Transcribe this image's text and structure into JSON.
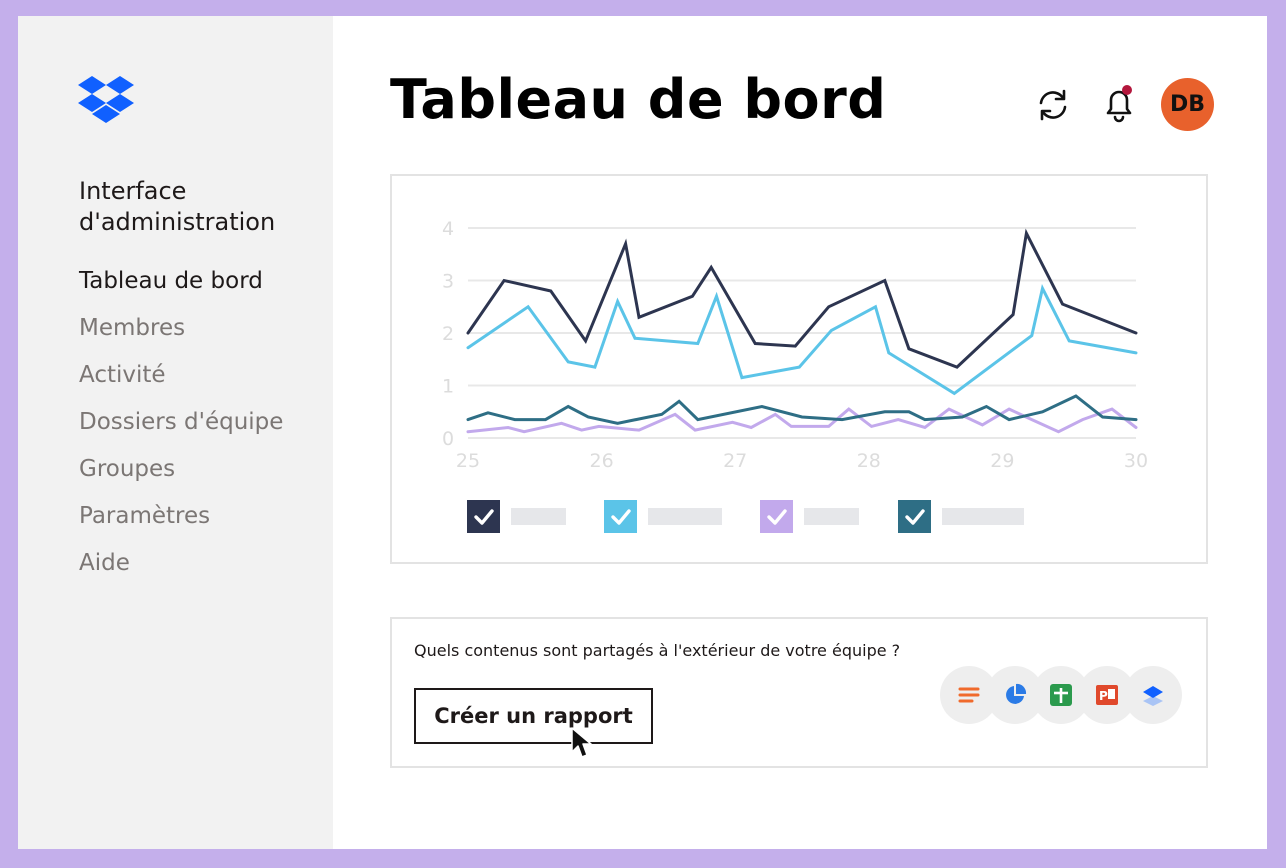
{
  "app": {
    "admin_title": "Interface d'administration",
    "page_title": "Tableau de bord",
    "avatar_initials": "DB",
    "avatar_color": "#e8612c",
    "notification_dot_color": "#b3163c",
    "logo": "dropbox-logo",
    "header_icons": [
      "sync-icon",
      "bell-icon"
    ]
  },
  "sidebar": {
    "items": [
      {
        "label": "Tableau de bord",
        "active": true
      },
      {
        "label": "Membres",
        "active": false
      },
      {
        "label": "Activité",
        "active": false
      },
      {
        "label": "Dossiers d'équipe",
        "active": false
      },
      {
        "label": "Groupes",
        "active": false
      },
      {
        "label": "Paramètres",
        "active": false
      },
      {
        "label": "Aide",
        "active": false
      }
    ]
  },
  "chart_data": {
    "type": "line",
    "x_ticks": [
      "25",
      "26",
      "27",
      "28",
      "29",
      "30"
    ],
    "y_ticks": [
      "0",
      "1",
      "2",
      "3",
      "4"
    ],
    "ylim": [
      0,
      4
    ],
    "xlim": [
      25,
      30
    ],
    "grid": true,
    "legend_position": "bottom",
    "series": [
      {
        "color": "#2d3550",
        "checked": true,
        "points": [
          [
            25,
            2.0
          ],
          [
            25.27,
            3.0
          ],
          [
            25.62,
            2.8
          ],
          [
            25.88,
            1.85
          ],
          [
            26.18,
            3.7
          ],
          [
            26.28,
            2.3
          ],
          [
            26.68,
            2.7
          ],
          [
            26.82,
            3.25
          ],
          [
            27.15,
            1.8
          ],
          [
            27.45,
            1.75
          ],
          [
            27.7,
            2.5
          ],
          [
            28.12,
            3.0
          ],
          [
            28.3,
            1.7
          ],
          [
            28.66,
            1.35
          ],
          [
            29.08,
            2.35
          ],
          [
            29.18,
            3.9
          ],
          [
            29.45,
            2.55
          ],
          [
            30,
            2.0
          ]
        ]
      },
      {
        "color": "#5bc4e8",
        "checked": true,
        "points": [
          [
            25,
            1.72
          ],
          [
            25.45,
            2.5
          ],
          [
            25.75,
            1.45
          ],
          [
            25.95,
            1.35
          ],
          [
            26.12,
            2.6
          ],
          [
            26.25,
            1.9
          ],
          [
            26.72,
            1.8
          ],
          [
            26.86,
            2.7
          ],
          [
            27.05,
            1.15
          ],
          [
            27.48,
            1.35
          ],
          [
            27.72,
            2.05
          ],
          [
            28.05,
            2.5
          ],
          [
            28.15,
            1.62
          ],
          [
            28.64,
            0.85
          ],
          [
            29.22,
            1.95
          ],
          [
            29.3,
            2.85
          ],
          [
            29.5,
            1.85
          ],
          [
            30,
            1.62
          ]
        ]
      },
      {
        "color": "#c2a9ec",
        "checked": true,
        "points": [
          [
            25,
            0.12
          ],
          [
            25.3,
            0.2
          ],
          [
            25.42,
            0.12
          ],
          [
            25.7,
            0.28
          ],
          [
            25.85,
            0.15
          ],
          [
            25.98,
            0.22
          ],
          [
            26.28,
            0.15
          ],
          [
            26.55,
            0.45
          ],
          [
            26.7,
            0.15
          ],
          [
            26.98,
            0.3
          ],
          [
            27.12,
            0.2
          ],
          [
            27.3,
            0.45
          ],
          [
            27.42,
            0.22
          ],
          [
            27.7,
            0.22
          ],
          [
            27.85,
            0.55
          ],
          [
            28.02,
            0.22
          ],
          [
            28.22,
            0.35
          ],
          [
            28.42,
            0.2
          ],
          [
            28.6,
            0.55
          ],
          [
            28.85,
            0.25
          ],
          [
            29.05,
            0.55
          ],
          [
            29.22,
            0.35
          ],
          [
            29.42,
            0.12
          ],
          [
            29.6,
            0.35
          ],
          [
            29.82,
            0.55
          ],
          [
            30,
            0.2
          ]
        ]
      },
      {
        "color": "#2e6e85",
        "checked": true,
        "points": [
          [
            25,
            0.35
          ],
          [
            25.15,
            0.48
          ],
          [
            25.35,
            0.35
          ],
          [
            25.58,
            0.35
          ],
          [
            25.75,
            0.6
          ],
          [
            25.9,
            0.4
          ],
          [
            26.12,
            0.28
          ],
          [
            26.45,
            0.45
          ],
          [
            26.58,
            0.7
          ],
          [
            26.72,
            0.35
          ],
          [
            27.2,
            0.6
          ],
          [
            27.5,
            0.4
          ],
          [
            27.8,
            0.35
          ],
          [
            28.12,
            0.5
          ],
          [
            28.3,
            0.5
          ],
          [
            28.42,
            0.35
          ],
          [
            28.7,
            0.4
          ],
          [
            28.88,
            0.6
          ],
          [
            29.05,
            0.35
          ],
          [
            29.3,
            0.5
          ],
          [
            29.55,
            0.8
          ],
          [
            29.75,
            0.4
          ],
          [
            30,
            0.35
          ]
        ]
      }
    ]
  },
  "report": {
    "question": "Quels contenus sont partagés à l'extérieur de votre équipe ?",
    "button_label": "Créer un rapport",
    "file_type_icons": [
      "document-icon",
      "pie-chart-icon",
      "spreadsheet-icon",
      "presentation-icon",
      "dropbox-layers-icon"
    ]
  }
}
